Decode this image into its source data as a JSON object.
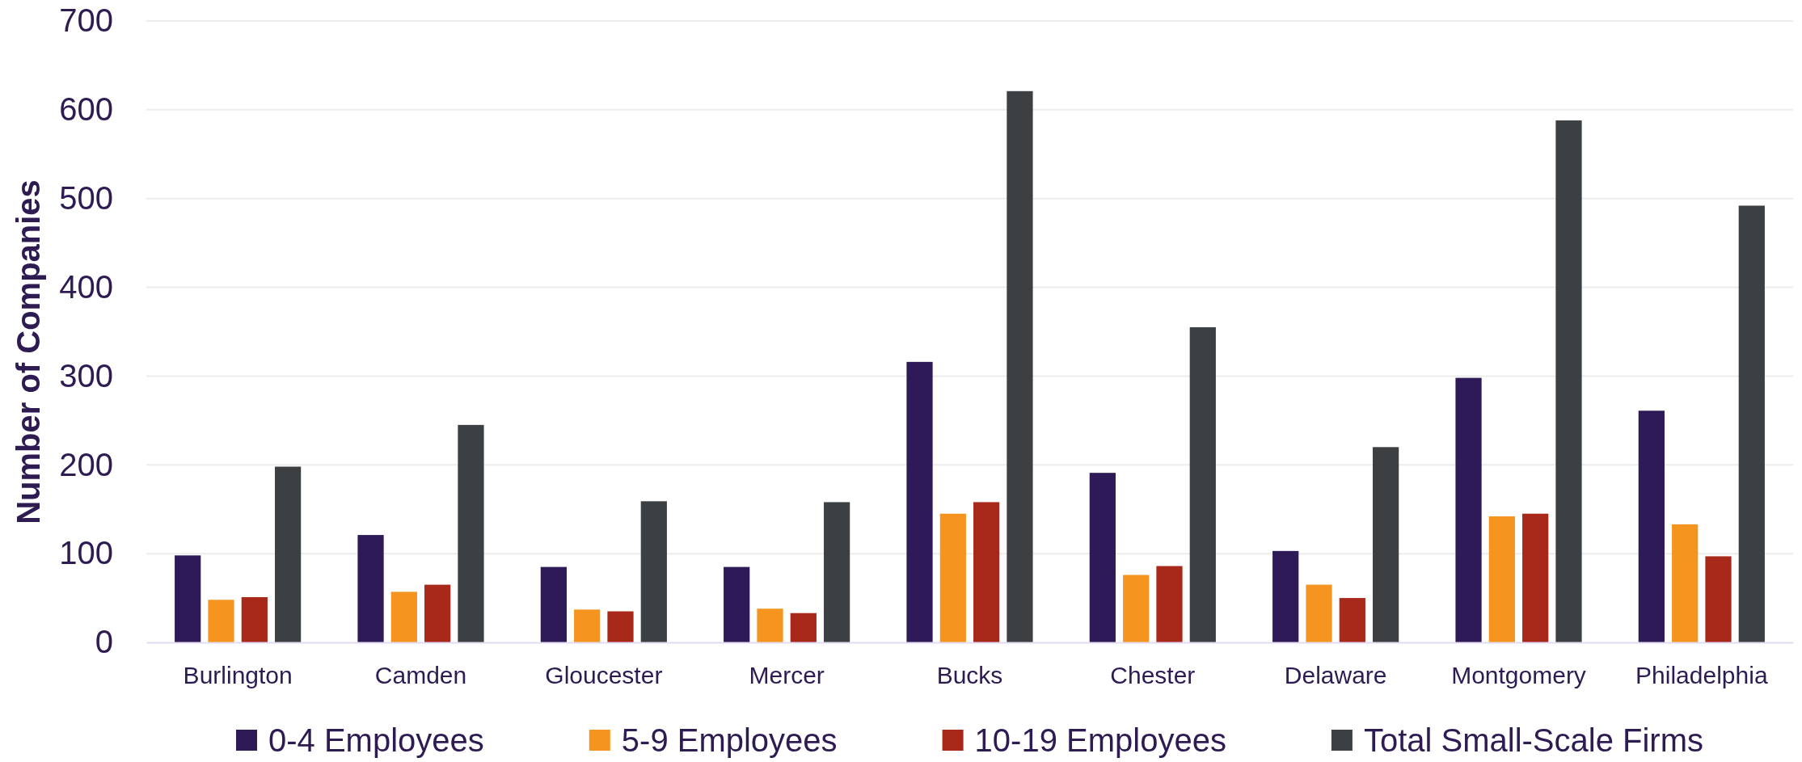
{
  "chart_data": {
    "type": "bar",
    "ylabel": "Number of Companies",
    "categories": [
      "Burlington",
      "Camden",
      "Gloucester",
      "Mercer",
      "Bucks",
      "Chester",
      "Delaware",
      "Montgomery",
      "Philadelphia"
    ],
    "series": [
      {
        "name": "0-4 Employees",
        "color": "#2e1a56",
        "values": [
          98,
          121,
          85,
          85,
          316,
          191,
          103,
          298,
          261
        ]
      },
      {
        "name": "5-9 Employees",
        "color": "#f5951f",
        "values": [
          48,
          57,
          37,
          38,
          145,
          76,
          65,
          142,
          133
        ]
      },
      {
        "name": "10-19 Employees",
        "color": "#a8291a",
        "values": [
          51,
          65,
          35,
          33,
          158,
          86,
          50,
          145,
          97
        ]
      },
      {
        "name": "Total Small-Scale Firms",
        "color": "#3c4042",
        "values": [
          198,
          245,
          159,
          158,
          621,
          355,
          220,
          588,
          492
        ]
      }
    ],
    "ylim": [
      0,
      700
    ],
    "yticks": [
      0,
      100,
      200,
      300,
      400,
      500,
      600,
      700
    ],
    "grid": "y",
    "legend": "bottom"
  }
}
